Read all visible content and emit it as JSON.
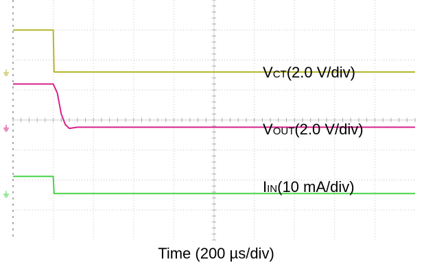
{
  "chart_data": {
    "type": "line",
    "xlabel": "Time (200 µs/div)",
    "x_unit": "div",
    "xlim": [
      0,
      10
    ],
    "ylim": [
      0,
      8
    ],
    "grid": true,
    "grid_style": "dotted",
    "series": [
      {
        "name": "VCT",
        "name_main": "V",
        "name_sub": "CT",
        "scale": "(2.0 V/div)",
        "color": "#b5b52e",
        "ground_div": 5.6,
        "points": [
          [
            0,
            7.0
          ],
          [
            1.0,
            7.0
          ],
          [
            1.02,
            5.6
          ],
          [
            10,
            5.6
          ]
        ]
      },
      {
        "name": "VOUT",
        "name_main": "V",
        "name_sub": "OUT",
        "scale": "(2.0 V/div)",
        "color": "#d6208a",
        "ground_div": 3.75,
        "points": [
          [
            0,
            5.2
          ],
          [
            1.0,
            5.2
          ],
          [
            1.1,
            4.9
          ],
          [
            1.2,
            4.2
          ],
          [
            1.3,
            3.85
          ],
          [
            1.4,
            3.72
          ],
          [
            1.6,
            3.76
          ],
          [
            10,
            3.76
          ]
        ]
      },
      {
        "name": "IIN",
        "name_main": "I",
        "name_sub": "IN",
        "scale": "(10 mA/div)",
        "color": "#45d445",
        "ground_div": 1.55,
        "points": [
          [
            0,
            2.12
          ],
          [
            1.0,
            2.12
          ],
          [
            1.02,
            1.55
          ],
          [
            10,
            1.55
          ]
        ]
      }
    ]
  }
}
